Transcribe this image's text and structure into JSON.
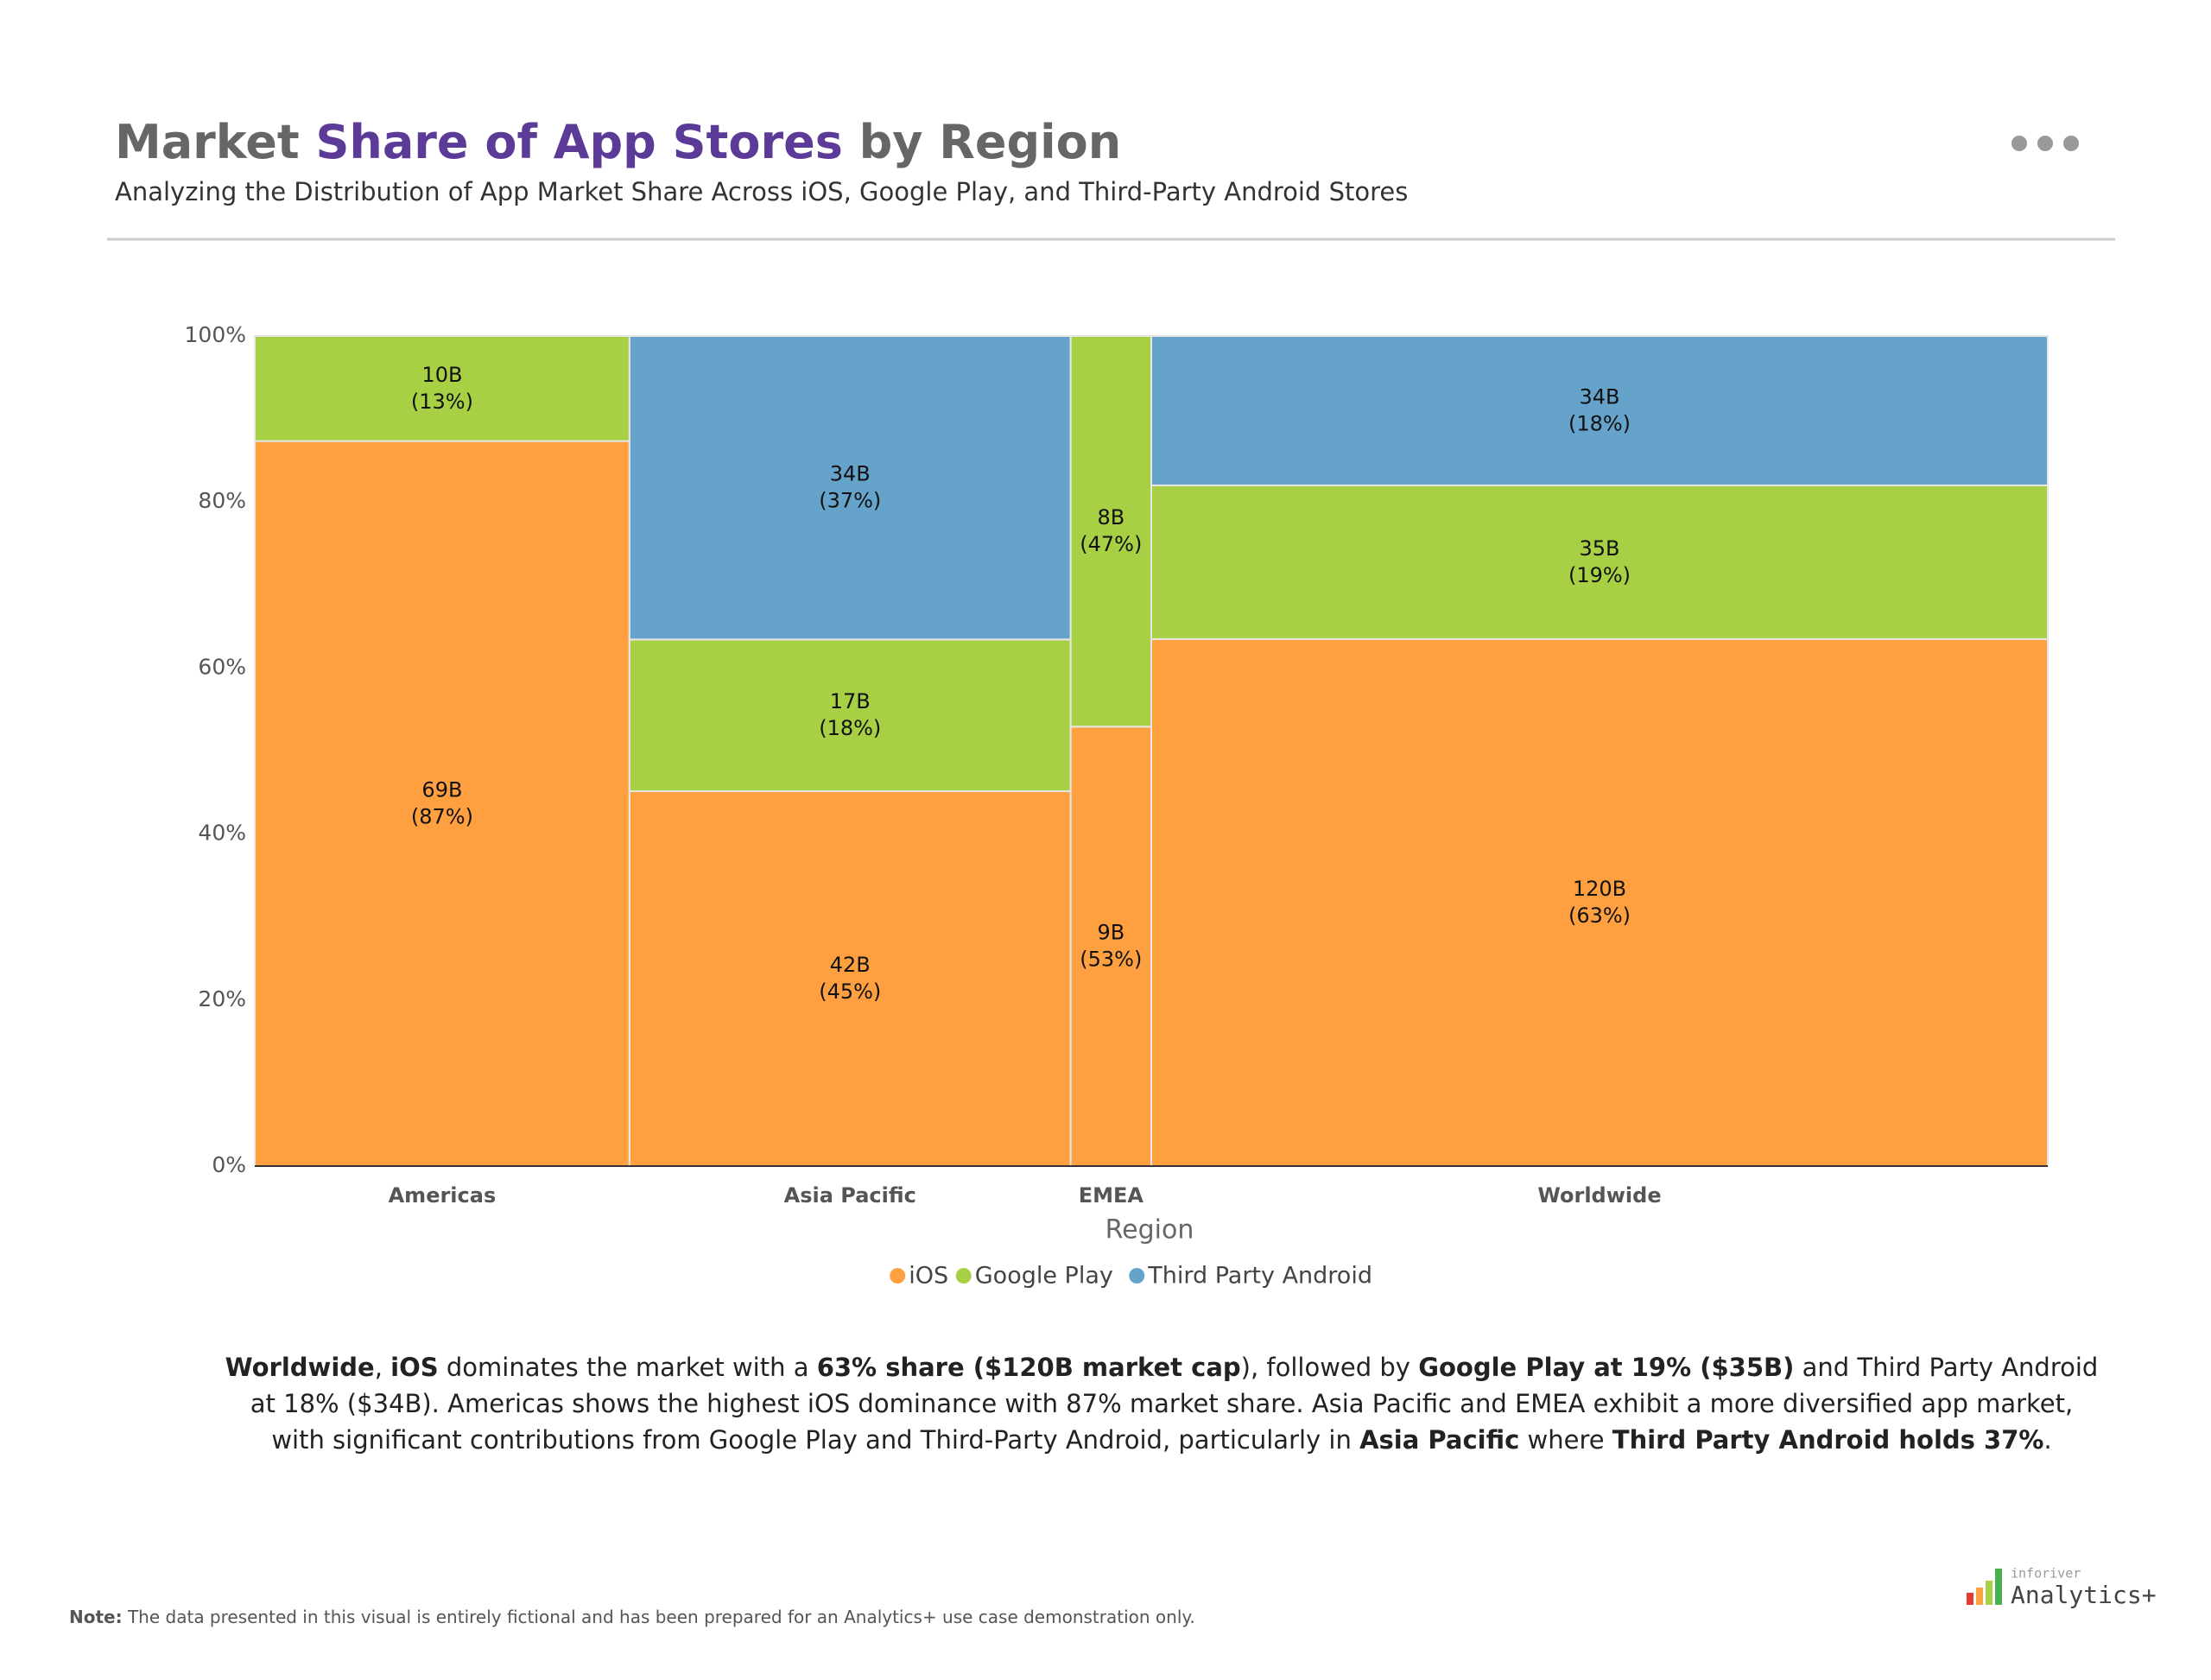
{
  "chart_data": {
    "type": "marimekko",
    "title": [
      "Market ",
      "Share of App Stores",
      " by Region"
    ],
    "subtitle": "Analyzing the Distribution of App Market Share Across iOS, Google Play, and Third-Party Android Stores",
    "categories": [
      "Americas",
      "Asia Pacific",
      "EMEA",
      "Worldwide"
    ],
    "x_label": "Region",
    "series": [
      {
        "name": "iOS",
        "color": "#FFA040",
        "values": [
          69,
          42,
          9,
          120
        ],
        "value_labels": [
          [
            "69B",
            "(87%)"
          ],
          [
            "42B",
            "(45%)"
          ],
          [
            "9B",
            "(53%)"
          ],
          [
            "120B",
            "(63%)"
          ]
        ]
      },
      {
        "name": "Google Play",
        "color": "#A8D044",
        "values": [
          10,
          17,
          8,
          35
        ],
        "value_labels": [
          [
            "10B",
            "(13%)"
          ],
          [
            "17B",
            "(18%)"
          ],
          [
            "8B",
            "(47%)"
          ],
          [
            "35B",
            "(19%)"
          ]
        ]
      },
      {
        "name": "Third Party Android",
        "color": "#66A3CB",
        "values": [
          null,
          34,
          null,
          34
        ],
        "value_labels": [
          null,
          [
            "34B",
            "(37%)"
          ],
          null,
          [
            "34B",
            "(18%)"
          ]
        ]
      }
    ],
    "ylim": [
      0,
      100
    ],
    "yticks": [
      {
        "value": 0,
        "label": "0%"
      },
      {
        "value": 20,
        "label": "20%"
      },
      {
        "value": 40,
        "label": "40%"
      },
      {
        "value": 60,
        "label": "60%"
      },
      {
        "value": 80,
        "label": "80%"
      },
      {
        "value": 100,
        "label": "100%"
      }
    ],
    "grid": false,
    "legend": "bottom"
  },
  "summary": [
    {
      "text": "Worldwide",
      "bold": true
    },
    {
      "text": ", ",
      "bold": false
    },
    {
      "text": "iOS",
      "bold": true
    },
    {
      "text": " dominates the market with a ",
      "bold": false
    },
    {
      "text": "63% share ($120B market cap",
      "bold": true
    },
    {
      "text": "), followed by ",
      "bold": false
    },
    {
      "text": "Google Play at 19% ($35B)",
      "bold": true
    },
    {
      "text": " and Third Party Android at 18% ($34B). Americas shows the highest iOS dominance with 87% market share. Asia Pacific and EMEA exhibit a more diversified app market, with significant contributions from Google Play and Third-Party Android, particularly in ",
      "bold": false
    },
    {
      "text": "Asia Pacific",
      "bold": true
    },
    {
      "text": " where ",
      "bold": false
    },
    {
      "text": "Third Party Android holds 37%",
      "bold": true
    },
    {
      "text": ".",
      "bold": false
    }
  ],
  "note": {
    "label": "Note:",
    "text": " The data presented in this visual is entirely fictional and has been prepared for an Analytics+ use case demonstration only."
  },
  "brand": {
    "small": "inforiver",
    "name": "Analytics+"
  }
}
